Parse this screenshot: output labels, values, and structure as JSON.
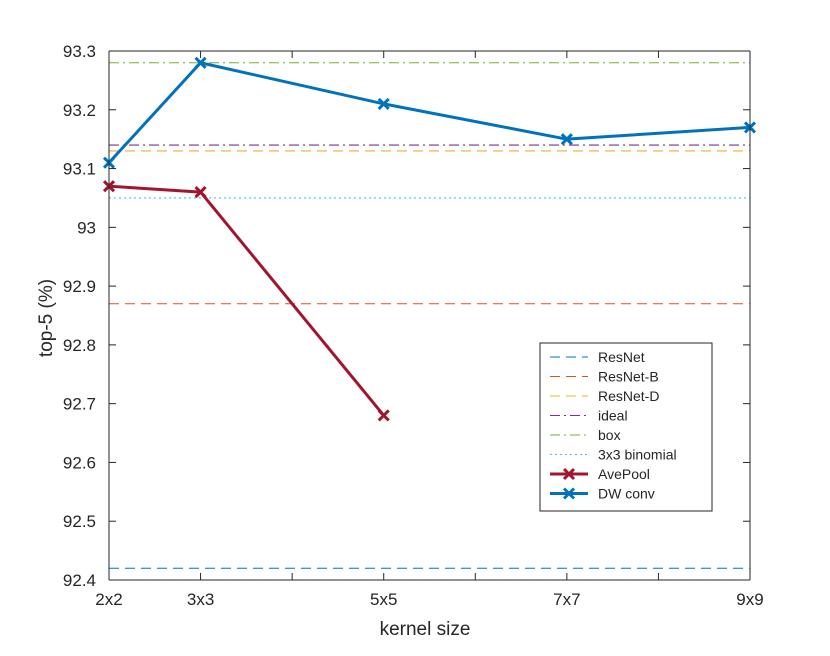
{
  "chart_data": {
    "type": "line",
    "title": "",
    "xlabel": "kernel size",
    "ylabel": "top-5 (%)",
    "xlim": [
      2,
      9
    ],
    "ylim": [
      92.4,
      93.3
    ],
    "x_ticks": [
      2,
      3,
      4,
      5,
      6,
      7,
      8,
      9
    ],
    "x_tick_labels": [
      "2x2",
      "3x3",
      "",
      "5x5",
      "",
      "7x7",
      "",
      "9x9"
    ],
    "y_ticks": [
      92.4,
      92.5,
      92.6,
      92.7,
      92.8,
      92.9,
      93,
      93.1,
      93.2,
      93.3
    ],
    "y_tick_labels": [
      "92.4",
      "92.5",
      "92.6",
      "92.7",
      "92.8",
      "92.9",
      "93",
      "93.1",
      "93.2",
      "93.3"
    ],
    "legend_position": "right-middle",
    "baselines": [
      {
        "name": "ResNet",
        "value": 92.42,
        "color": "#0072BD",
        "dash": "dashed"
      },
      {
        "name": "ResNet-B",
        "value": 92.87,
        "color": "#D95319",
        "dash": "dashed"
      },
      {
        "name": "ResNet-D",
        "value": 93.13,
        "color": "#EDB120",
        "dash": "dashed"
      },
      {
        "name": "ideal",
        "value": 93.14,
        "color": "#7E2F8E",
        "dash": "dashdot"
      },
      {
        "name": "box",
        "value": 93.28,
        "color": "#77AC30",
        "dash": "dashdot"
      },
      {
        "name": "3x3 binomial",
        "value": 93.05,
        "color": "#4DBEEE",
        "dash": "dotted"
      }
    ],
    "series": [
      {
        "name": "AvePool",
        "color": "#A2142F",
        "x": [
          2,
          3,
          5
        ],
        "values": [
          93.07,
          93.06,
          92.68
        ]
      },
      {
        "name": "DW conv",
        "color": "#0072BD",
        "x": [
          2,
          3,
          5,
          7,
          9
        ],
        "values": [
          93.11,
          93.28,
          93.21,
          93.15,
          93.17
        ]
      }
    ]
  }
}
